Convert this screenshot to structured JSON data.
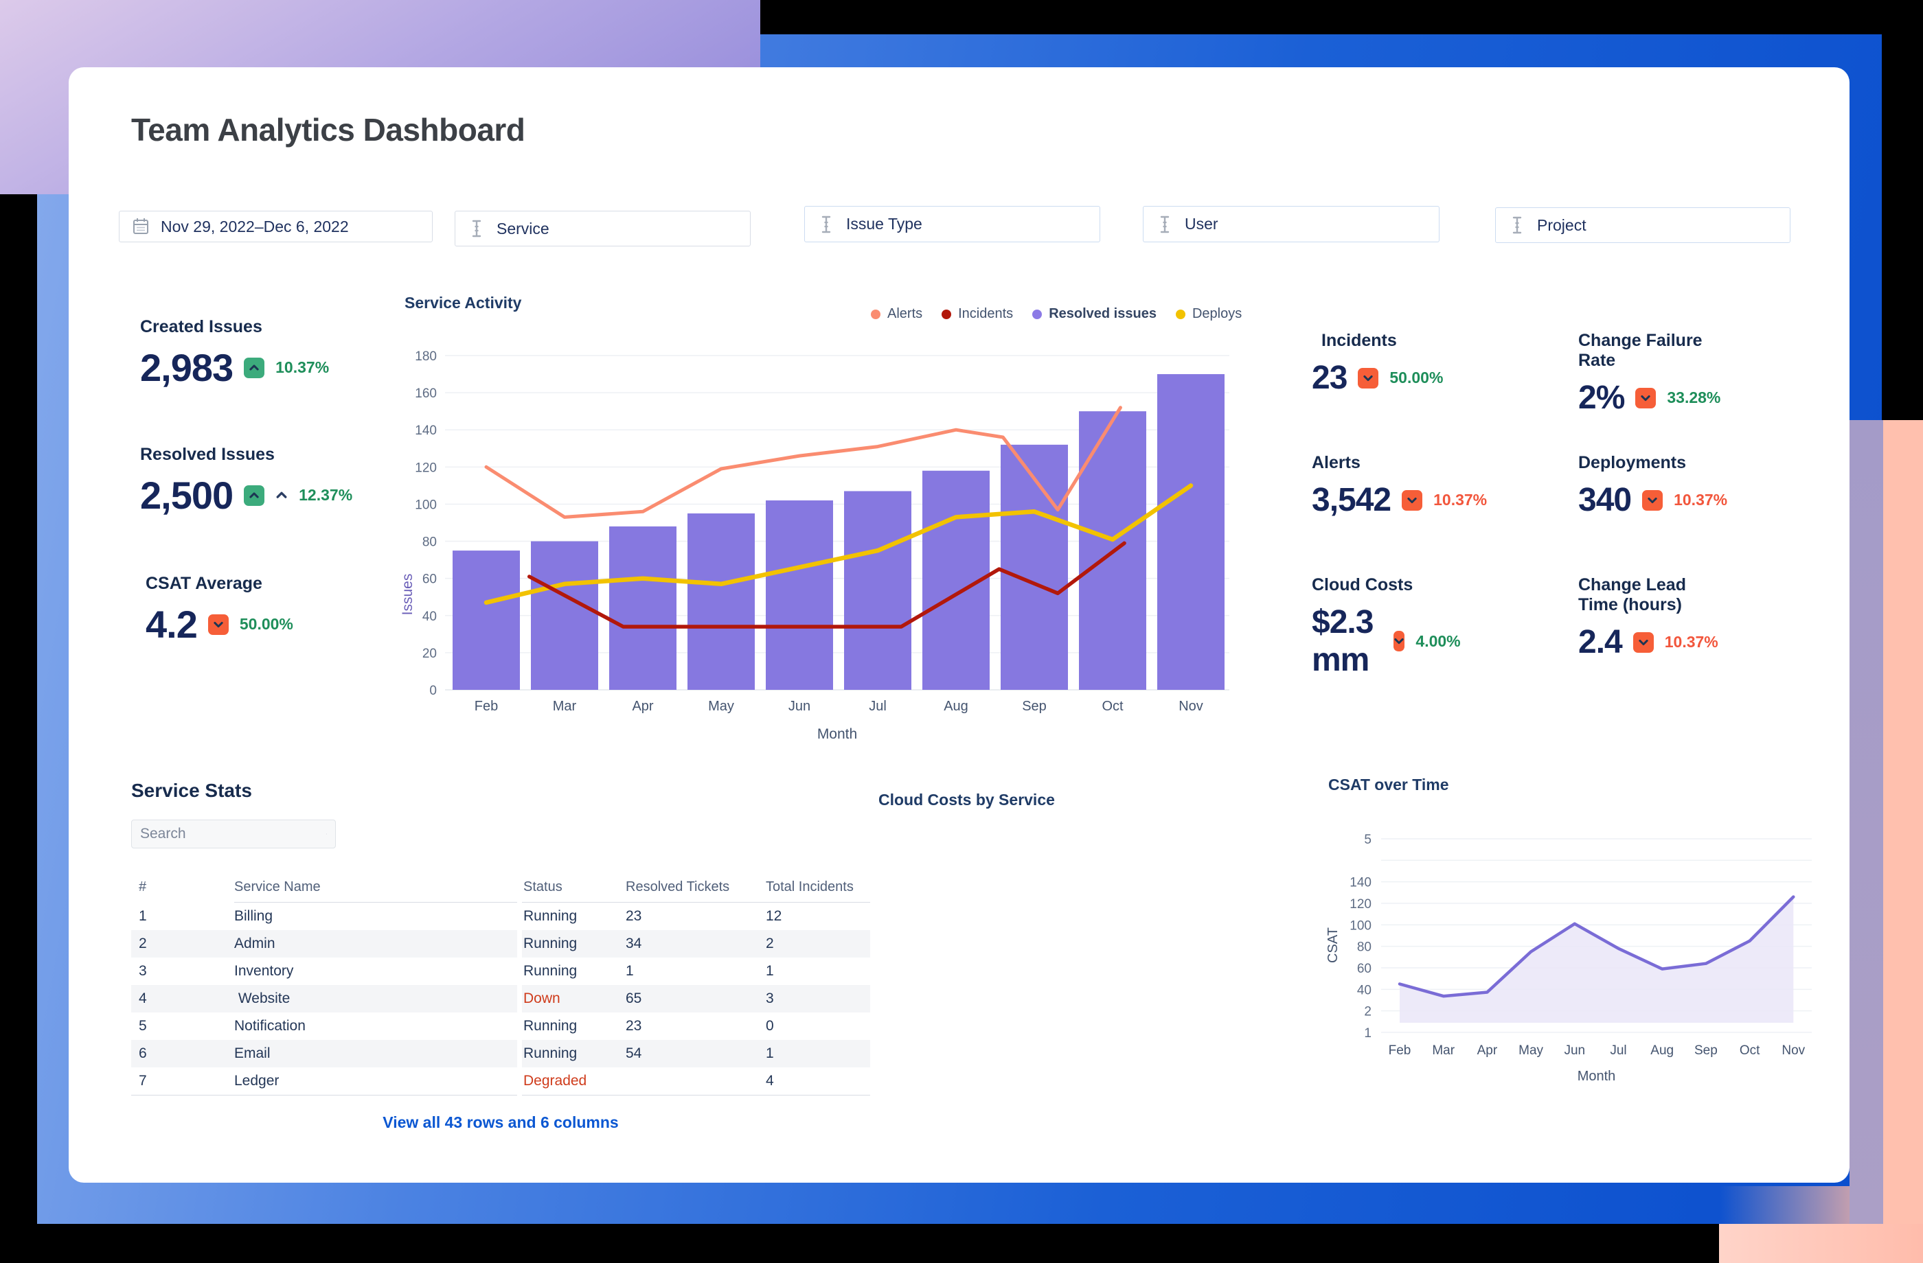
{
  "page": {
    "title": "Team Analytics Dashboard"
  },
  "filters": [
    {
      "id": "date-range",
      "icon": "calendar",
      "label": "Nov 29, 2022–Dec 6, 2022"
    },
    {
      "id": "service",
      "icon": "ibeam",
      "label": "Service"
    },
    {
      "id": "issue-type",
      "icon": "ibeam",
      "label": "Issue Type"
    },
    {
      "id": "user",
      "icon": "ibeam",
      "label": "User"
    },
    {
      "id": "project",
      "icon": "ibeam",
      "label": "Project"
    }
  ],
  "kpis_left": [
    {
      "label": "Created Issues",
      "value": "2,983",
      "delta": "10.37%",
      "direction": "up",
      "badge": "green",
      "delta_color": "green",
      "extra_caret": false
    },
    {
      "label": "Resolved Issues",
      "value": "2,500",
      "delta": "12.37%",
      "direction": "up",
      "badge": "green",
      "delta_color": "green",
      "extra_caret": true
    },
    {
      "label": "CSAT Average",
      "value": "4.2",
      "delta": "50.00%",
      "direction": "down",
      "badge": "orange",
      "delta_color": "green",
      "extra_caret": false
    }
  ],
  "kpis_right": [
    {
      "label": "Incidents",
      "value": "23",
      "delta": "50.00%",
      "direction": "down",
      "badge": "orange",
      "delta_color": "green"
    },
    {
      "label": "Change Failure Rate",
      "value": "2%",
      "delta": "33.28%",
      "direction": "down",
      "badge": "orange",
      "delta_color": "green"
    },
    {
      "label": "Alerts",
      "value": "3,542",
      "delta": "10.37%",
      "direction": "down",
      "badge": "orange",
      "delta_color": "orange"
    },
    {
      "label": "Deployments",
      "value": "340",
      "delta": "10.37%",
      "direction": "down",
      "badge": "orange",
      "delta_color": "orange"
    },
    {
      "label": "Cloud Costs",
      "value": "$2.3 mm",
      "delta": "4.00%",
      "direction": "down",
      "badge": "orange",
      "delta_color": "green"
    },
    {
      "label": "Change Lead Time (hours)",
      "value": "2.4",
      "delta": "10.37%",
      "direction": "down",
      "badge": "orange",
      "delta_color": "orange"
    }
  ],
  "service_stats": {
    "title": "Service Stats",
    "search_placeholder": "Search",
    "columns": [
      "#",
      "Service Name",
      "Status",
      "Resolved Tickets",
      "Total Incidents"
    ],
    "rows": [
      {
        "num": "1",
        "name": "Billing",
        "status": "Running",
        "status_color": "default",
        "resolved": "23",
        "incidents": "12"
      },
      {
        "num": "2",
        "name": "Admin",
        "status": "Running",
        "status_color": "default",
        "resolved": "34",
        "incidents": "2"
      },
      {
        "num": "3",
        "name": "Inventory",
        "status": "Running",
        "status_color": "default",
        "resolved": "1",
        "incidents": "1"
      },
      {
        "num": "4",
        "name": " Website",
        "status": "Down",
        "status_color": "red",
        "resolved": "65",
        "incidents": "3"
      },
      {
        "num": "5",
        "name": "Notification",
        "status": "Running",
        "status_color": "default",
        "resolved": "23",
        "incidents": "0"
      },
      {
        "num": "6",
        "name": "Email",
        "status": "Running",
        "status_color": "default",
        "resolved": "54",
        "incidents": "1"
      },
      {
        "num": "7",
        "name": "Ledger",
        "status": "Degraded",
        "status_color": "red",
        "resolved": "",
        "incidents": "4"
      }
    ],
    "view_all_label": "View all 43 rows and 6 columns"
  },
  "colors": {
    "bar_purple": "#8678e0",
    "alerts": "#fa8c70",
    "incidents": "#b2180b",
    "deploys": "#f2c200",
    "csat_line": "#7a6cd6",
    "csat_fill": "#eae6f8",
    "green_badge": "#3cab7c",
    "orange_badge": "#f65e38",
    "green_text": "#1e8e5a",
    "orange_text": "#f2563c",
    "link_blue": "#0b57d2",
    "status_red": "#cf3c1c"
  },
  "chart_data": [
    {
      "id": "service_activity",
      "type": "bar+line",
      "title": "Service Activity",
      "xlabel": "Month",
      "ylabel": "Issues",
      "categories": [
        "Feb",
        "Mar",
        "Apr",
        "May",
        "Jun",
        "Jul",
        "Aug",
        "Sep",
        "Oct",
        "Nov"
      ],
      "ylim": [
        0,
        180
      ],
      "ytick_step": 20,
      "grid": true,
      "legend_position": "top-right",
      "legend": [
        {
          "label": "Alerts",
          "color": "#fa8c70",
          "bold": false
        },
        {
          "label": "Incidents",
          "color": "#b2180b",
          "bold": false
        },
        {
          "label": "Resolved issues",
          "color": "#8c7ae6",
          "bold": true
        },
        {
          "label": "Deploys",
          "color": "#f2c200",
          "bold": false
        }
      ],
      "series": [
        {
          "name": "Resolved issues",
          "type": "bar",
          "color": "#8678e0",
          "values": [
            75,
            80,
            88,
            95,
            102,
            107,
            118,
            132,
            150,
            170
          ]
        },
        {
          "name": "Deploys",
          "type": "line",
          "color": "#f2c200",
          "width": 6.5,
          "points": [
            [
              0,
              47
            ],
            [
              1,
              57
            ],
            [
              2,
              60
            ],
            [
              3,
              57
            ],
            [
              4,
              66
            ],
            [
              5,
              75
            ],
            [
              6,
              93
            ],
            [
              7,
              96
            ],
            [
              8,
              81
            ],
            [
              9,
              110
            ]
          ]
        },
        {
          "name": "Incidents",
          "type": "line",
          "color": "#b2180b",
          "width": 5.5,
          "points": [
            [
              0.55,
              61
            ],
            [
              1.75,
              34
            ],
            [
              5.3,
              34
            ],
            [
              6.55,
              65
            ],
            [
              7.3,
              52
            ],
            [
              8.15,
              79
            ]
          ]
        },
        {
          "name": "Alerts",
          "type": "line",
          "color": "#fa8c70",
          "width": 5,
          "points": [
            [
              0,
              120
            ],
            [
              1,
              93
            ],
            [
              2,
              96
            ],
            [
              3,
              119
            ],
            [
              4,
              126
            ],
            [
              5,
              131
            ],
            [
              6,
              140
            ],
            [
              6.6,
              136
            ],
            [
              7.3,
              97
            ],
            [
              8.1,
              152
            ]
          ]
        }
      ]
    },
    {
      "id": "cloud_costs_by_service",
      "type": "empty",
      "title": "Cloud Costs by Service"
    },
    {
      "id": "csat_over_time",
      "type": "area",
      "title": "CSAT over Time",
      "xlabel": "Month",
      "ylabel": "CSAT",
      "categories": [
        "Feb",
        "Mar",
        "Apr",
        "May",
        "Jun",
        "Jul",
        "Aug",
        "Sep",
        "Oct",
        "Nov"
      ],
      "values": [
        45,
        28,
        35,
        75,
        101,
        78,
        59,
        64,
        85,
        126
      ],
      "ytick_labels_bottom_to_top": [
        "1",
        "2",
        "40",
        "60",
        "80",
        "100",
        "120",
        "140",
        "",
        "5"
      ],
      "grid": true,
      "line_color": "#7a6cd6",
      "fill_color": "#eae6f8"
    }
  ]
}
